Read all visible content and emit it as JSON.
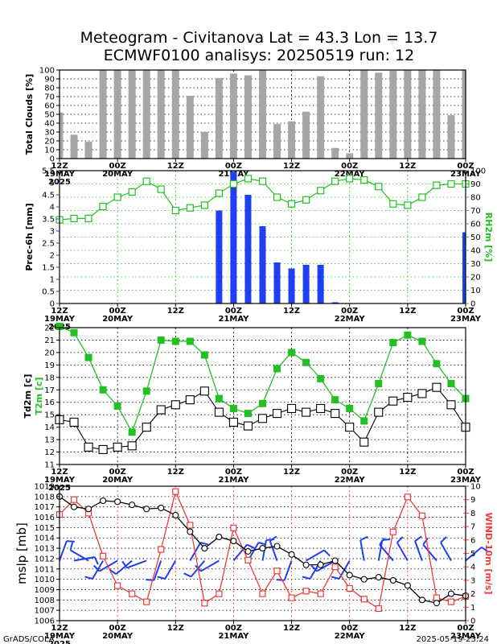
{
  "title": {
    "line1": "Meteogram - Civitanova Lat = 43.3 Lon = 13.7",
    "line2": "ECMWF0100 analisys: 20250519 run: 12"
  },
  "footer": {
    "left": "GrADS/COLA",
    "right": "2025-05-19-23:24"
  },
  "time_axis": {
    "ticks": [
      {
        "hour": "12Z",
        "date": "19MAY",
        "year": "2025"
      },
      {
        "hour": "00Z",
        "date": "20MAY",
        "year": ""
      },
      {
        "hour": "12Z",
        "date": "",
        "year": ""
      },
      {
        "hour": "00Z",
        "date": "21MAY",
        "year": ""
      },
      {
        "hour": "12Z",
        "date": "",
        "year": ""
      },
      {
        "hour": "00Z",
        "date": "22MAY",
        "year": ""
      },
      {
        "hour": "12Z",
        "date": "",
        "year": ""
      },
      {
        "hour": "00Z",
        "date": "23MAY",
        "year": ""
      }
    ]
  },
  "colors": {
    "gray_bar": "#a6a6a6",
    "blue_bar": "#1f3ff0",
    "green": "#22c022",
    "red": "#f03a3a",
    "blue_barb": "#1f3ff0",
    "black": "#000000"
  },
  "chart_data": [
    {
      "type": "bar",
      "panel": "clouds",
      "ylabel": "Total Clouds [%]",
      "ylim": [
        0,
        100
      ],
      "yticks": [
        0,
        10,
        20,
        30,
        40,
        50,
        60,
        70,
        80,
        90,
        100
      ],
      "x": [
        0,
        3,
        6,
        9,
        12,
        15,
        18,
        21,
        24,
        27,
        30,
        33,
        36,
        39,
        42,
        45,
        48,
        51,
        54,
        57,
        60,
        63,
        66,
        69,
        72,
        75,
        78,
        81,
        84
      ],
      "values": [
        52,
        27,
        19,
        100,
        100,
        100,
        100,
        100,
        100,
        71,
        30,
        91,
        96,
        94,
        100,
        39,
        42,
        53,
        93,
        12,
        6,
        100,
        97,
        99,
        100,
        100,
        100,
        49,
        100
      ]
    },
    {
      "type": "bar",
      "panel": "precip_rh",
      "ylabel": "Prec-6h [mm]",
      "ylabel_right": "RH2m [%]",
      "ylim": [
        0,
        5.5
      ],
      "yticks": [
        "0",
        "0.5",
        "1",
        "1.5",
        "2",
        "2.5",
        "3",
        "3.5",
        "4",
        "4.5",
        "5",
        "5.5"
      ],
      "ylim_right": [
        0,
        100
      ],
      "yticks_right": [
        0,
        10,
        20,
        30,
        40,
        50,
        60,
        70,
        80,
        90,
        100
      ],
      "series": [
        {
          "kind": "bar",
          "x": [
            33,
            36,
            39,
            42,
            45,
            48,
            51,
            54,
            57,
            60,
            84
          ],
          "values": [
            3.85,
            5.45,
            4.5,
            3.2,
            1.7,
            1.45,
            1.6,
            1.6,
            0.05,
            0.0,
            2.95
          ]
        },
        {
          "kind": "line",
          "x": [
            0,
            3,
            6,
            9,
            12,
            15,
            18,
            21,
            24,
            27,
            30,
            33,
            36,
            39,
            42,
            45,
            48,
            51,
            54,
            57,
            60,
            63,
            66,
            69,
            72,
            75,
            78,
            81,
            84
          ],
          "values": [
            63,
            64,
            64,
            73,
            80,
            84,
            92,
            86,
            70,
            72,
            74,
            83,
            90,
            94,
            92,
            80,
            75,
            78,
            85,
            92,
            94,
            93,
            88,
            75,
            74,
            80,
            89,
            90,
            90
          ]
        }
      ]
    },
    {
      "type": "line",
      "panel": "temperature",
      "ylabel": "Td2m [c]",
      "ylabel_2": "T2m [c]",
      "ylim": [
        11,
        22
      ],
      "yticks": [
        11,
        12,
        13,
        14,
        15,
        16,
        17,
        18,
        19,
        20,
        21,
        22
      ],
      "x": [
        0,
        3,
        6,
        9,
        12,
        15,
        18,
        21,
        24,
        27,
        30,
        33,
        36,
        39,
        42,
        45,
        48,
        51,
        54,
        57,
        60,
        63,
        66,
        69,
        72,
        75,
        78,
        81,
        84
      ],
      "series": [
        {
          "name": "T2m",
          "values": [
            22.1,
            21.6,
            19.6,
            17.0,
            15.7,
            13.6,
            16.9,
            21.0,
            20.9,
            20.9,
            19.8,
            16.3,
            15.5,
            15.1,
            15.9,
            18.7,
            20.0,
            19.2,
            17.9,
            16.2,
            15.5,
            14.5,
            17.5,
            20.8,
            21.4,
            20.9,
            19.1,
            17.5,
            16.3
          ]
        },
        {
          "name": "Td2m",
          "values": [
            14.6,
            14.4,
            12.4,
            12.2,
            12.4,
            12.5,
            14.0,
            15.4,
            15.8,
            16.2,
            16.9,
            15.2,
            14.4,
            14.1,
            14.7,
            15.1,
            15.5,
            15.2,
            15.5,
            15.1,
            14.0,
            12.8,
            15.2,
            16.1,
            16.4,
            16.7,
            17.2,
            15.8,
            14.0
          ]
        }
      ]
    },
    {
      "type": "line",
      "panel": "pressure_wind",
      "ylabel": "mslp [mb]",
      "ylabel_right": "WIND-10m [m/s]",
      "ylim": [
        1006,
        1019
      ],
      "yticks": [
        1006,
        1007,
        1008,
        1009,
        1010,
        1011,
        1012,
        1013,
        1014,
        1015,
        1016,
        1017,
        1018,
        1019
      ],
      "ylim_right": [
        0,
        10
      ],
      "yticks_right": [
        0,
        1,
        2,
        3,
        4,
        5,
        6,
        7,
        8,
        9,
        10
      ],
      "x": [
        0,
        3,
        6,
        9,
        12,
        15,
        18,
        21,
        24,
        27,
        30,
        33,
        36,
        39,
        42,
        45,
        48,
        51,
        54,
        57,
        60,
        63,
        66,
        69,
        72,
        75,
        78,
        81,
        84
      ],
      "series": [
        {
          "name": "mslp",
          "values": [
            1018.0,
            1017.0,
            1016.8,
            1017.6,
            1017.5,
            1017.2,
            1016.8,
            1016.9,
            1016.2,
            1014.6,
            1013.0,
            1014.1,
            1013.7,
            1012.7,
            1013.0,
            1013.2,
            1012.4,
            1011.4,
            1011.4,
            1011.8,
            1010.4,
            1010.0,
            1010.2,
            1009.9,
            1009.4,
            1008.0,
            1007.7,
            1008.6,
            1008.4
          ]
        },
        {
          "name": "wind",
          "values": [
            7.9,
            9.0,
            8.0,
            4.8,
            2.6,
            2.0,
            1.4,
            5.3,
            9.6,
            7.1,
            1.3,
            2.0,
            6.9,
            4.5,
            2.0,
            3.7,
            1.7,
            2.2,
            2.0,
            4.0,
            2.4,
            1.6,
            0.9,
            6.6,
            9.2,
            7.8,
            1.7,
            1.4,
            1.8
          ]
        }
      ],
      "wind_direction_deg": [
        20,
        80,
        300,
        210,
        240,
        230,
        250,
        200,
        210,
        30,
        220,
        240,
        40,
        30,
        10,
        340,
        200,
        60,
        210,
        240,
        210,
        350,
        10,
        320,
        330,
        340,
        320,
        330,
        50
      ]
    }
  ]
}
